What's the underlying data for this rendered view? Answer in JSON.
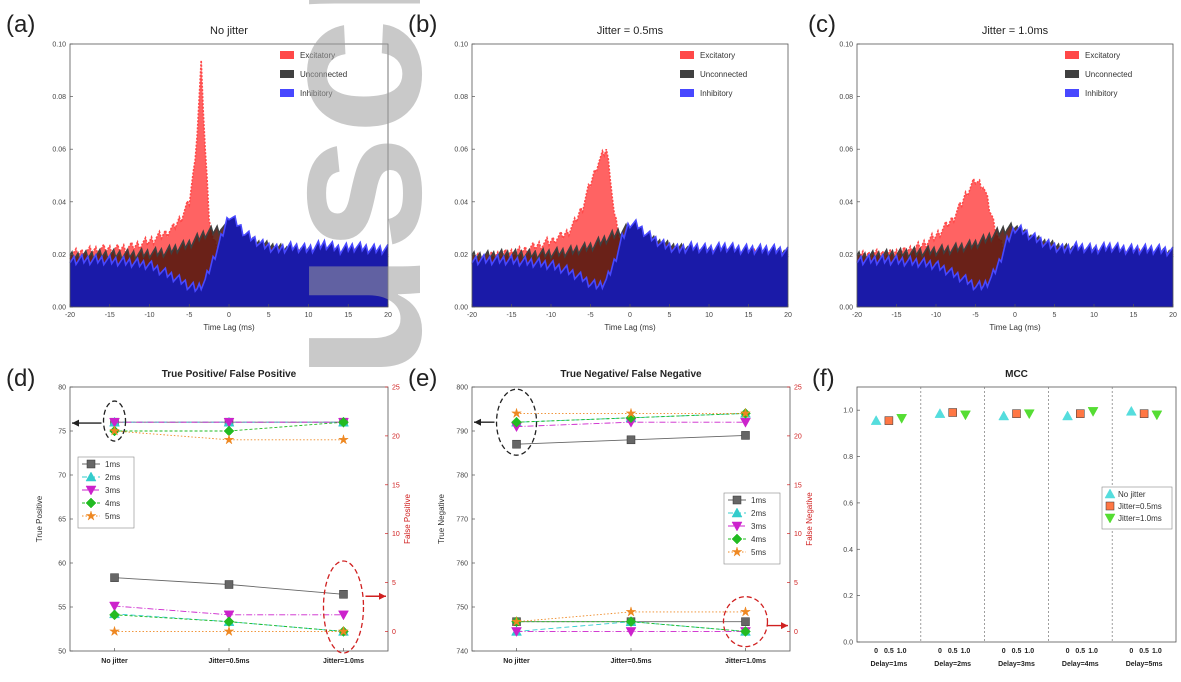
{
  "figure": {
    "panel_labels": [
      "(a)",
      "(b)",
      "(c)",
      "(d)",
      "(e)",
      "(f)"
    ],
    "watermark": "uscript"
  },
  "chart_data": [
    {
      "id": "a",
      "type": "area",
      "title": "No jitter",
      "xlabel": "Time Lag (ms)",
      "ylabel": "",
      "xlim": [
        -20,
        20
      ],
      "ylim": [
        0,
        0.1
      ],
      "xticks": [
        "-20",
        "-15",
        "-10",
        "-5",
        "0",
        "5",
        "10",
        "15",
        "20"
      ],
      "yticks": [
        "0.00",
        "0.02",
        "0.04",
        "0.06",
        "0.08",
        "0.10"
      ],
      "legend": "top-right",
      "series": [
        {
          "name": "Excitatory",
          "color": "#ff4848",
          "x": [
            -20,
            -18,
            -16,
            -14,
            -12,
            -10,
            -8,
            -7,
            -6,
            -5,
            -4.5,
            -4,
            -3.5,
            -3,
            -2.5,
            -2,
            -1,
            0,
            2,
            4,
            6,
            8,
            10,
            12,
            14,
            16,
            18,
            20
          ],
          "y": [
            0.02,
            0.021,
            0.022,
            0.022,
            0.023,
            0.025,
            0.028,
            0.03,
            0.034,
            0.04,
            0.05,
            0.066,
            0.092,
            0.06,
            0.035,
            0.025,
            0.02,
            0.018,
            0.019,
            0.02,
            0.019,
            0.02,
            0.019,
            0.02,
            0.019,
            0.02,
            0.019,
            0.019
          ]
        },
        {
          "name": "Unconnected",
          "color": "#404040",
          "x": [
            -20,
            -16,
            -12,
            -8,
            -5,
            -3,
            -1,
            0,
            2,
            5,
            8,
            12,
            16,
            20
          ],
          "y": [
            0.019,
            0.02,
            0.02,
            0.021,
            0.024,
            0.028,
            0.03,
            0.029,
            0.025,
            0.023,
            0.021,
            0.02,
            0.02,
            0.02
          ]
        },
        {
          "name": "Inhibitory",
          "color": "#4848ff",
          "x": [
            -20,
            -16,
            -12,
            -10,
            -8,
            -6,
            -5,
            -4,
            -3,
            -2,
            -1,
            0,
            1,
            2,
            4,
            6,
            8,
            10,
            12,
            14,
            16,
            18,
            20
          ],
          "y": [
            0.018,
            0.018,
            0.017,
            0.016,
            0.013,
            0.01,
            0.008,
            0.007,
            0.01,
            0.018,
            0.026,
            0.035,
            0.032,
            0.028,
            0.024,
            0.022,
            0.023,
            0.022,
            0.024,
            0.022,
            0.023,
            0.022,
            0.022
          ]
        }
      ]
    },
    {
      "id": "b",
      "type": "area",
      "title": "Jitter = 0.5ms",
      "xlabel": "Time Lag (ms)",
      "ylabel": "",
      "xlim": [
        -20,
        20
      ],
      "ylim": [
        0,
        0.1
      ],
      "xticks": [
        "-20",
        "-15",
        "-10",
        "-5",
        "0",
        "5",
        "10",
        "15",
        "20"
      ],
      "yticks": [
        "0.00",
        "0.02",
        "0.04",
        "0.06",
        "0.08",
        "0.10"
      ],
      "legend": "top-right",
      "series": [
        {
          "name": "Excitatory",
          "color": "#ff4848",
          "x": [
            -20,
            -18,
            -16,
            -14,
            -12,
            -10,
            -8,
            -7,
            -6,
            -5,
            -4,
            -3,
            -2.5,
            -2,
            -1,
            0,
            2,
            4,
            6,
            8,
            10,
            12,
            14,
            16,
            18,
            20
          ],
          "y": [
            0.018,
            0.019,
            0.02,
            0.021,
            0.023,
            0.025,
            0.028,
            0.032,
            0.038,
            0.047,
            0.055,
            0.06,
            0.05,
            0.035,
            0.022,
            0.019,
            0.019,
            0.02,
            0.019,
            0.02,
            0.019,
            0.02,
            0.019,
            0.02,
            0.019,
            0.019
          ]
        },
        {
          "name": "Unconnected",
          "color": "#404040",
          "x": [
            -20,
            -16,
            -12,
            -8,
            -5,
            -3,
            -1,
            0,
            2,
            5,
            8,
            12,
            16,
            20
          ],
          "y": [
            0.019,
            0.02,
            0.02,
            0.021,
            0.023,
            0.026,
            0.029,
            0.03,
            0.026,
            0.023,
            0.021,
            0.02,
            0.02,
            0.02
          ]
        },
        {
          "name": "Inhibitory",
          "color": "#4848ff",
          "x": [
            -20,
            -16,
            -12,
            -10,
            -8,
            -6,
            -5,
            -4,
            -3,
            -2,
            -1,
            0,
            1,
            2,
            4,
            6,
            8,
            10,
            12,
            14,
            16,
            18,
            20
          ],
          "y": [
            0.018,
            0.018,
            0.017,
            0.016,
            0.014,
            0.011,
            0.009,
            0.008,
            0.01,
            0.017,
            0.026,
            0.032,
            0.031,
            0.028,
            0.024,
            0.022,
            0.023,
            0.022,
            0.023,
            0.022,
            0.022,
            0.022,
            0.021
          ]
        }
      ]
    },
    {
      "id": "c",
      "type": "area",
      "title": "Jitter = 1.0ms",
      "xlabel": "Time Lag (ms)",
      "ylabel": "",
      "xlim": [
        -20,
        20
      ],
      "ylim": [
        0,
        0.1
      ],
      "xticks": [
        "-20",
        "-15",
        "-10",
        "-5",
        "0",
        "5",
        "10",
        "15",
        "20"
      ],
      "yticks": [
        "0.00",
        "0.02",
        "0.04",
        "0.06",
        "0.08",
        "0.10"
      ],
      "legend": "top-right",
      "series": [
        {
          "name": "Excitatory",
          "color": "#ff4848",
          "x": [
            -20,
            -18,
            -16,
            -14,
            -12,
            -10,
            -8,
            -7,
            -6,
            -5,
            -4,
            -3,
            -2,
            -1,
            0,
            2,
            4,
            6,
            8,
            10,
            12,
            14,
            16,
            18,
            20
          ],
          "y": [
            0.019,
            0.02,
            0.02,
            0.021,
            0.023,
            0.027,
            0.033,
            0.038,
            0.044,
            0.048,
            0.046,
            0.035,
            0.025,
            0.02,
            0.019,
            0.019,
            0.02,
            0.019,
            0.02,
            0.019,
            0.02,
            0.019,
            0.02,
            0.019,
            0.019
          ]
        },
        {
          "name": "Unconnected",
          "color": "#404040",
          "x": [
            -20,
            -16,
            -12,
            -8,
            -5,
            -3,
            -1,
            0,
            2,
            5,
            8,
            12,
            16,
            20
          ],
          "y": [
            0.019,
            0.02,
            0.021,
            0.022,
            0.024,
            0.027,
            0.03,
            0.03,
            0.026,
            0.023,
            0.021,
            0.02,
            0.02,
            0.02
          ]
        },
        {
          "name": "Inhibitory",
          "color": "#4848ff",
          "x": [
            -20,
            -16,
            -12,
            -10,
            -8,
            -6,
            -5,
            -4,
            -3,
            -2,
            -1,
            0,
            1,
            2,
            4,
            6,
            8,
            10,
            12,
            14,
            16,
            18,
            20
          ],
          "y": [
            0.018,
            0.018,
            0.017,
            0.016,
            0.013,
            0.01,
            0.008,
            0.008,
            0.011,
            0.017,
            0.025,
            0.03,
            0.029,
            0.027,
            0.024,
            0.022,
            0.023,
            0.022,
            0.023,
            0.022,
            0.022,
            0.022,
            0.021
          ]
        }
      ]
    },
    {
      "id": "d",
      "type": "line",
      "title": "True Positive/ False Positive",
      "xlabel": "",
      "ylabel": "True Positive",
      "ylabel_right": "False Positive",
      "categories": [
        "No jitter",
        "Jitter=0.5ms",
        "Jitter=1.0ms"
      ],
      "ylim": [
        50,
        80
      ],
      "ylim_right": [
        -2,
        25
      ],
      "yticks": [
        "50",
        "55",
        "60",
        "65",
        "70",
        "75",
        "80"
      ],
      "yticks_right": [
        "0",
        "5",
        "10",
        "15",
        "20",
        "25"
      ],
      "legend": "center-left",
      "series": [
        {
          "name": "1ms",
          "color": "#666666",
          "marker": "square",
          "tp": [
            76.0,
            76.0,
            76.0
          ],
          "fp": [
            5.5,
            4.8,
            3.8
          ]
        },
        {
          "name": "2ms",
          "color": "#33cccc",
          "marker": "triangle-up",
          "tp": [
            76.0,
            76.0,
            76.0
          ],
          "fp": [
            1.8,
            1.0,
            0.0
          ]
        },
        {
          "name": "3ms",
          "color": "#cc22cc",
          "marker": "triangle-down",
          "tp": [
            76.0,
            76.0,
            76.0
          ],
          "fp": [
            2.6,
            1.7,
            1.7
          ]
        },
        {
          "name": "4ms",
          "color": "#22bb22",
          "marker": "diamond",
          "tp": [
            75.0,
            75.0,
            76.0
          ],
          "fp": [
            1.7,
            1.0,
            0.0
          ]
        },
        {
          "name": "5ms",
          "color": "#ee8822",
          "marker": "star",
          "tp": [
            75.0,
            74.0,
            74.0
          ],
          "fp": [
            0.0,
            0.0,
            0.0
          ]
        }
      ]
    },
    {
      "id": "e",
      "type": "line",
      "title": "True Negative/ False Negative",
      "xlabel": "",
      "ylabel": "True Negative",
      "ylabel_right": "False Negative",
      "categories": [
        "No jitter",
        "Jitter=0.5ms",
        "Jitter=1.0ms"
      ],
      "ylim": [
        740,
        800
      ],
      "ylim_right": [
        -2,
        25
      ],
      "yticks": [
        "740",
        "750",
        "760",
        "770",
        "780",
        "790",
        "800"
      ],
      "yticks_right": [
        "0",
        "5",
        "10",
        "15",
        "20",
        "25"
      ],
      "legend": "center-right",
      "series": [
        {
          "name": "1ms",
          "color": "#666666",
          "marker": "square",
          "tn": [
            787,
            788,
            789
          ],
          "fn": [
            1.0,
            1.0,
            1.0
          ]
        },
        {
          "name": "2ms",
          "color": "#33cccc",
          "marker": "triangle-up",
          "tn": [
            792,
            793,
            794
          ],
          "fn": [
            0.0,
            1.0,
            0.0
          ]
        },
        {
          "name": "3ms",
          "color": "#cc22cc",
          "marker": "triangle-down",
          "tn": [
            791,
            792,
            792
          ],
          "fn": [
            0.0,
            0.0,
            0.0
          ]
        },
        {
          "name": "4ms",
          "color": "#22bb22",
          "marker": "diamond",
          "tn": [
            792,
            793,
            794
          ],
          "fn": [
            1.0,
            1.0,
            0.0
          ]
        },
        {
          "name": "5ms",
          "color": "#ee8822",
          "marker": "star",
          "tn": [
            794,
            794,
            794
          ],
          "fn": [
            1.0,
            2.0,
            2.0
          ]
        }
      ]
    },
    {
      "id": "f",
      "type": "scatter",
      "title": "MCC",
      "xlabel": "",
      "ylabel": "",
      "ylim": [
        0.0,
        1.1
      ],
      "yticks": [
        "0.0",
        "0.2",
        "0.4",
        "0.6",
        "0.8",
        "1.0"
      ],
      "groups": [
        "Delay=1ms",
        "Delay=2ms",
        "Delay=3ms",
        "Delay=4ms",
        "Delay=5ms"
      ],
      "group_ticks": [
        "0",
        "0.5",
        "1.0"
      ],
      "legend": "center-right",
      "series": [
        {
          "name": "No jitter",
          "color": "#55dddd",
          "marker": "triangle-up",
          "values": [
            0.955,
            0.985,
            0.975,
            0.975,
            0.995
          ]
        },
        {
          "name": "Jitter=0.5ms",
          "color": "#ff7744",
          "marker": "square",
          "values": [
            0.955,
            0.99,
            0.985,
            0.985,
            0.985
          ]
        },
        {
          "name": "Jitter=1.0ms",
          "color": "#55dd33",
          "marker": "triangle-down",
          "values": [
            0.965,
            0.98,
            0.985,
            0.995,
            0.98
          ]
        }
      ]
    }
  ]
}
